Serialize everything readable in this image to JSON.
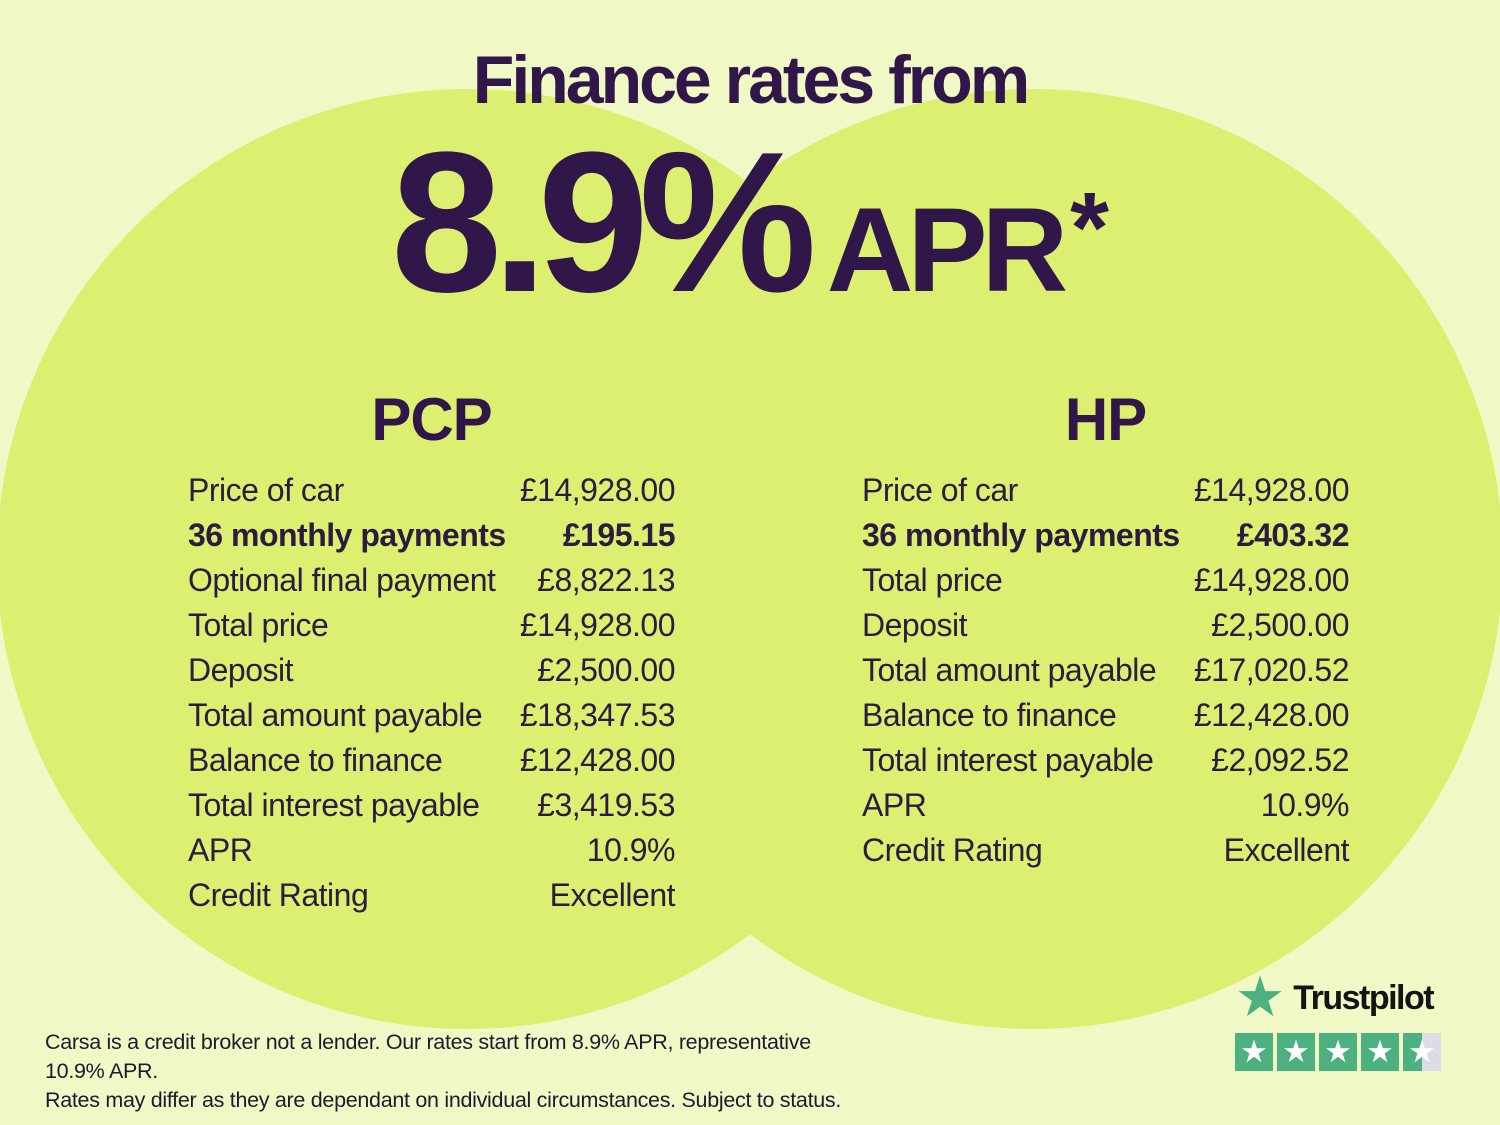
{
  "header": {
    "title": "Finance rates from",
    "rate": "8.9%",
    "rate_unit": "APR",
    "rate_footnote_marker": "*"
  },
  "pcp": {
    "heading": "PCP",
    "rows": [
      {
        "label": "Price of car",
        "value": "£14,928.00"
      },
      {
        "label": "36 monthly payments",
        "value": "£195.15"
      },
      {
        "label": "Optional final payment",
        "value": "£8,822.13"
      },
      {
        "label": "Total price",
        "value": "£14,928.00"
      },
      {
        "label": "Deposit",
        "value": "£2,500.00"
      },
      {
        "label": "Total amount payable",
        "value": "£18,347.53"
      },
      {
        "label": "Balance to finance",
        "value": "£12,428.00"
      },
      {
        "label": "Total interest payable",
        "value": "£3,419.53"
      },
      {
        "label": "APR",
        "value": "10.9%"
      },
      {
        "label": "Credit Rating",
        "value": "Excellent"
      }
    ]
  },
  "hp": {
    "heading": "HP",
    "rows": [
      {
        "label": "Price of car",
        "value": "£14,928.00"
      },
      {
        "label": "36 monthly payments",
        "value": "£403.32"
      },
      {
        "label": "Total price",
        "value": "£14,928.00"
      },
      {
        "label": "Deposit",
        "value": "£2,500.00"
      },
      {
        "label": "Total amount payable",
        "value": "£17,020.52"
      },
      {
        "label": "Balance to finance",
        "value": "£12,428.00"
      },
      {
        "label": "Total interest payable",
        "value": "£2,092.52"
      },
      {
        "label": "APR",
        "value": "10.9%"
      },
      {
        "label": "Credit Rating",
        "value": "Excellent"
      }
    ]
  },
  "disclaimer": {
    "line1": "Carsa is a credit broker not a lender. Our rates start from 8.9% APR, representative 10.9% APR.",
    "line2": "Rates may differ as they are dependant on individual circumstances. Subject to status."
  },
  "trustpilot": {
    "brand": "Trustpilot",
    "star_glyph": "★",
    "rating_stars_total": 5,
    "rating_stars_filled": 4.5
  },
  "colors": {
    "background": "#F0F9C6",
    "circle": "#DCEF70",
    "heading_purple": "#31164A",
    "row_text": "#2D1B3F",
    "disclaimer_text": "#1E1930",
    "trustpilot_green": "#4CB080",
    "trustpilot_empty_grey": "#DCDCE6",
    "trustpilot_text": "#141414"
  }
}
